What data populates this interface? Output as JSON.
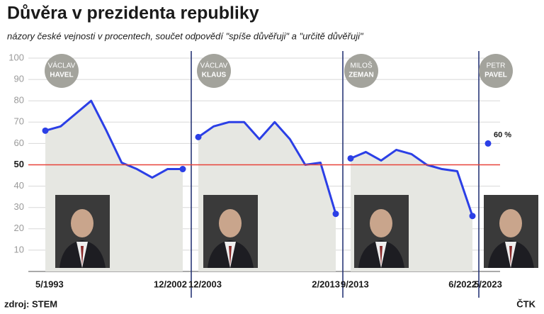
{
  "chart_data": {
    "type": "line",
    "title": "Důvěra v prezidenta republiky",
    "subtitle": "názory české vejnosti v procentech, součet odpovědí \"spíše důvěřuji\" a \"určitě důvěřuji\"",
    "source": "zdroj: STEM",
    "credit": "ČTK",
    "ylim": [
      0,
      100
    ],
    "yticks": [
      10,
      20,
      30,
      40,
      50,
      60,
      70,
      80,
      90,
      100
    ],
    "grid": true,
    "reference_line": 50,
    "reference_color": "#e8433a",
    "series": [
      {
        "first_name": "VÁCLAV",
        "name": "HAVEL",
        "color": "#2b3fe6",
        "categories": [
          "5/1993",
          null,
          null,
          null,
          null,
          null,
          null,
          null,
          null,
          "12/2002"
        ],
        "values": [
          66,
          68,
          74,
          80,
          66,
          51,
          48,
          44,
          48,
          48
        ]
      },
      {
        "first_name": "VÁCLAV",
        "name": "KLAUS",
        "color": "#2b3fe6",
        "categories": [
          "12/2003",
          null,
          null,
          null,
          null,
          null,
          null,
          null,
          null,
          "2/2013"
        ],
        "values": [
          63,
          68,
          70,
          70,
          62,
          70,
          62,
          50,
          51,
          27
        ]
      },
      {
        "first_name": "MILOŠ",
        "name": "ZEMAN",
        "color": "#2b3fe6",
        "categories": [
          "9/2013",
          null,
          null,
          null,
          null,
          null,
          null,
          null,
          "6/2022"
        ],
        "values": [
          53,
          56,
          52,
          57,
          55,
          50,
          48,
          47,
          26
        ]
      },
      {
        "first_name": "PETR",
        "name": "PAVEL",
        "color": "#2b3fe6",
        "categories": [
          "5/2023"
        ],
        "values": [
          60
        ],
        "value_labels": [
          "60 %"
        ]
      }
    ]
  }
}
